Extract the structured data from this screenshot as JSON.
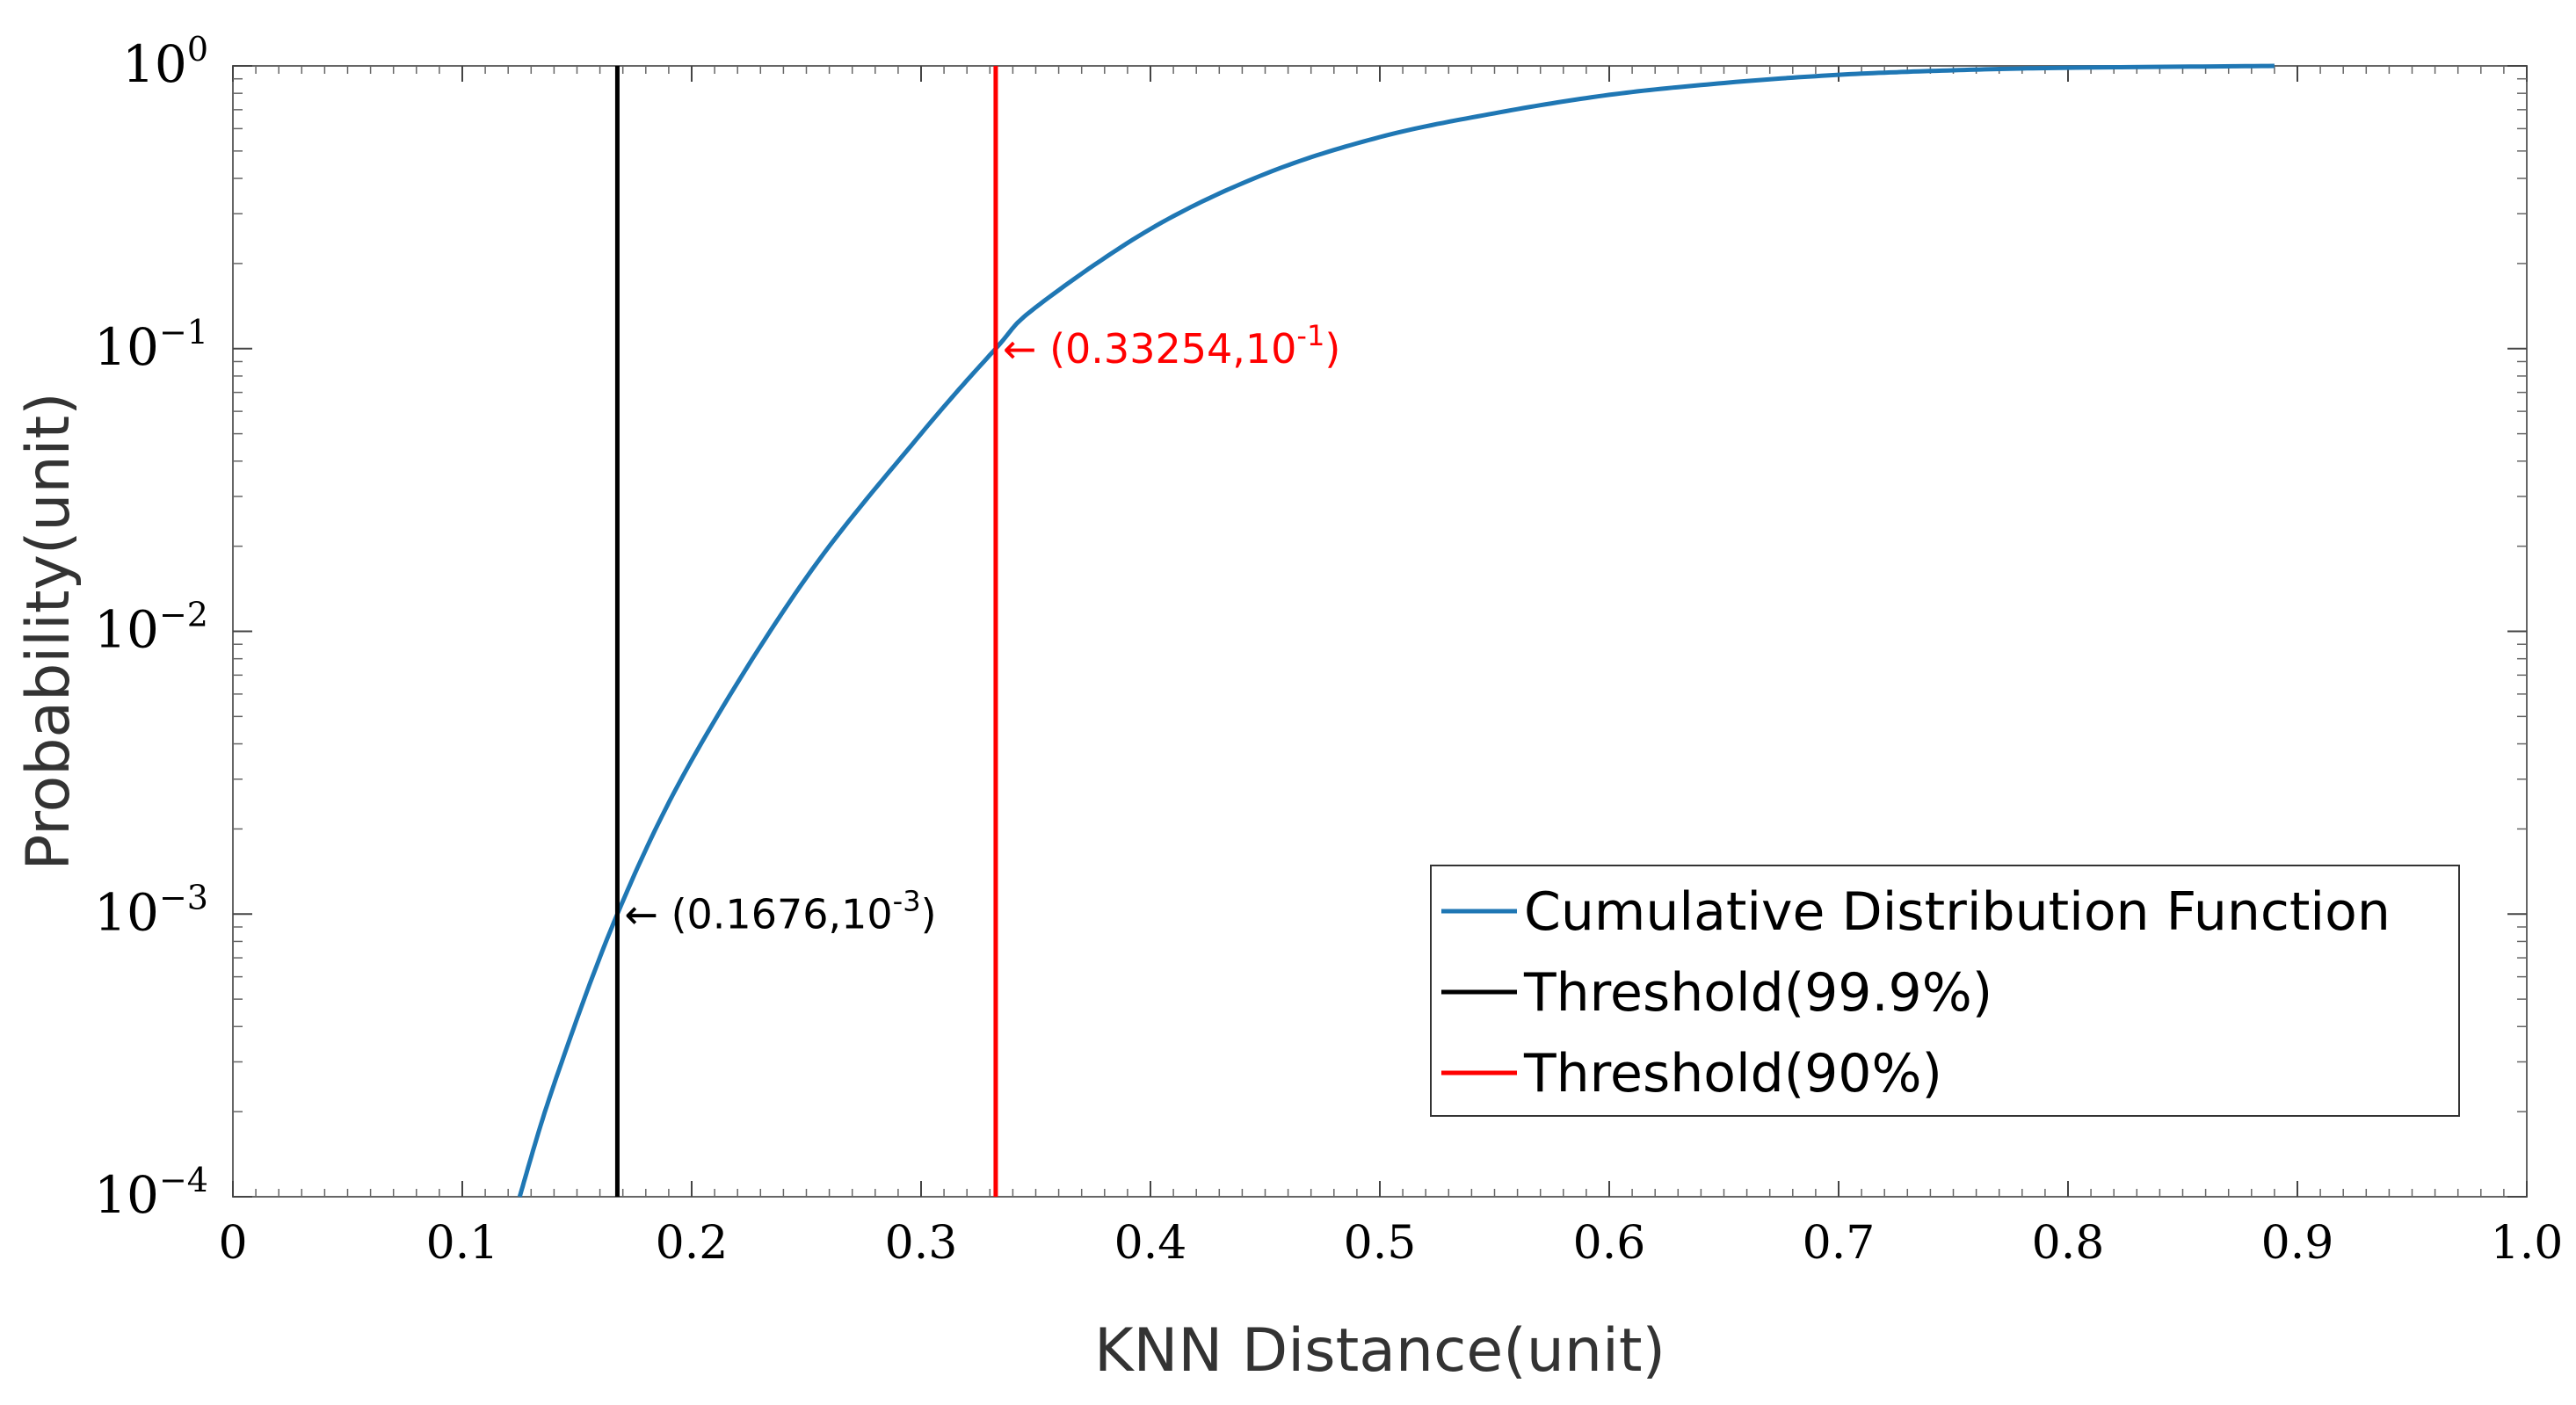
{
  "chart_data": {
    "type": "line",
    "title": "",
    "xlabel": "KNN Distance(unit)",
    "ylabel": "Probability(unit)",
    "xlim": [
      0,
      1.0
    ],
    "ylim": [
      0.0001,
      1
    ],
    "yscale": "log",
    "grid": false,
    "x_ticks": [
      "0",
      "0.1",
      "0.2",
      "0.3",
      "0.4",
      "0.5",
      "0.6",
      "0.7",
      "0.8",
      "0.9",
      "1.0"
    ],
    "y_ticks": [
      {
        "base": "10",
        "exp": "0",
        "value": 1
      },
      {
        "base": "10",
        "exp": "−1",
        "value": 0.1
      },
      {
        "base": "10",
        "exp": "−2",
        "value": 0.01
      },
      {
        "base": "10",
        "exp": "−3",
        "value": 0.001
      },
      {
        "base": "10",
        "exp": "−4",
        "value": 0.0001
      }
    ],
    "series": [
      {
        "name": "Cumulative Distribution Function",
        "color": "#1f77b4",
        "x": [
          0.125,
          0.14,
          0.1676,
          0.2,
          0.25,
          0.3,
          0.33254,
          0.35,
          0.4,
          0.45,
          0.5,
          0.55,
          0.6,
          0.65,
          0.7,
          0.75,
          0.8,
          0.89
        ],
        "y": [
          0.0001,
          0.00025,
          0.001,
          0.0035,
          0.0155,
          0.05,
          0.1,
          0.14,
          0.265,
          0.415,
          0.56,
          0.68,
          0.79,
          0.87,
          0.93,
          0.965,
          0.985,
          1.0
        ]
      }
    ],
    "vlines": [
      {
        "name": "Threshold(99.9%)",
        "x": 0.1676,
        "color": "#000000"
      },
      {
        "name": "Threshold(90%)",
        "x": 0.33254,
        "color": "#ff0000"
      }
    ],
    "annotations": [
      {
        "x": 0.1676,
        "y": 0.001,
        "text": "(0.1676,10",
        "exp": "-3",
        "suffix": ")",
        "color": "#000000"
      },
      {
        "x": 0.33254,
        "y": 0.1,
        "text": "(0.33254,10",
        "exp": "-1",
        "suffix": ")",
        "color": "#ff0000"
      }
    ],
    "legend": {
      "position": "bottom-right",
      "entries": [
        {
          "label": "Cumulative Distribution Function",
          "color": "#1f77b4"
        },
        {
          "label": "Threshold(99.9%)",
          "color": "#000000"
        },
        {
          "label": "Threshold(90%)",
          "color": "#ff0000"
        }
      ]
    }
  }
}
